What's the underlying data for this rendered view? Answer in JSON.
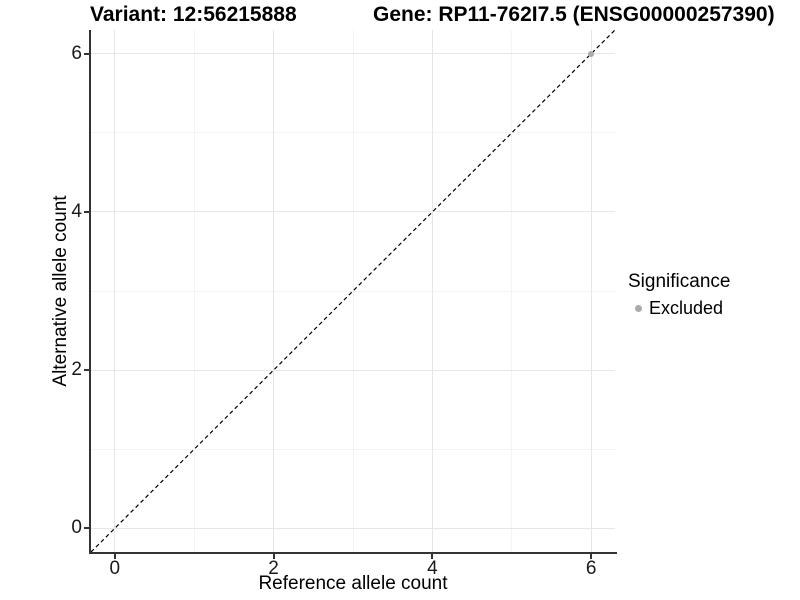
{
  "titles": {
    "variant": "Variant: 12:56215888",
    "gene": "Gene: RP11-762I7.5 (ENSG00000257390)"
  },
  "legend": {
    "title": "Significance",
    "items": [
      {
        "label": "Excluded",
        "color": "#ababab"
      }
    ]
  },
  "colors": {
    "point_excluded": "#ababab",
    "grid_major": "#e6e6e6",
    "grid_minor": "#f3f3f3",
    "axis_line": "#333333",
    "identity_line": "#000000"
  },
  "chart_data": {
    "type": "scatter",
    "title": "Variant: 12:56215888 / Gene: RP11-762I7.5 (ENSG00000257390)",
    "xlabel": "Reference allele count",
    "ylabel": "Alternative allele count",
    "xlim": [
      -0.3,
      6.3
    ],
    "ylim": [
      -0.3,
      6.3
    ],
    "x_ticks": [
      0,
      2,
      4,
      6
    ],
    "y_ticks": [
      0,
      2,
      4,
      6
    ],
    "minor_gridlines": [
      1,
      3,
      5
    ],
    "grid": true,
    "legend_position": "right",
    "series": [
      {
        "name": "Excluded",
        "color": "#ababab",
        "points": [
          {
            "x": 6,
            "y": 6
          }
        ]
      }
    ],
    "reference_line": {
      "type": "identity",
      "slope": 1,
      "intercept": 0,
      "style": "dashed",
      "color": "#000000"
    }
  }
}
